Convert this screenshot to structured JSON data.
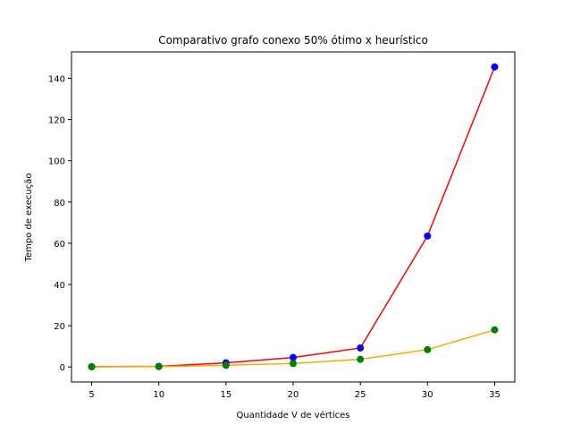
{
  "chart_data": {
    "type": "line",
    "title": "Comparativo grafo conexo 50% ótimo x heurístico",
    "xlabel": "Quantidade V de vértices",
    "ylabel": "Tempo de execução",
    "x": [
      5,
      10,
      15,
      20,
      25,
      30,
      35
    ],
    "xticks": [
      5,
      10,
      15,
      20,
      25,
      30,
      35
    ],
    "yticks": [
      0,
      20,
      40,
      60,
      80,
      100,
      120,
      140
    ],
    "xlim": [
      3.5,
      36.5
    ],
    "ylim": [
      -7.3,
      152.8
    ],
    "grid": false,
    "legend": "none",
    "series": [
      {
        "values": [
          0.1,
          0.3,
          2.0,
          4.6,
          9.2,
          63.5,
          145.5
        ],
        "line_color": "#ff0000",
        "marker_color": "#0000ff"
      },
      {
        "values": [
          0.1,
          0.2,
          0.8,
          1.7,
          3.7,
          8.4,
          18.0
        ],
        "line_color": "#ffa500",
        "marker_color": "#008000"
      }
    ]
  }
}
